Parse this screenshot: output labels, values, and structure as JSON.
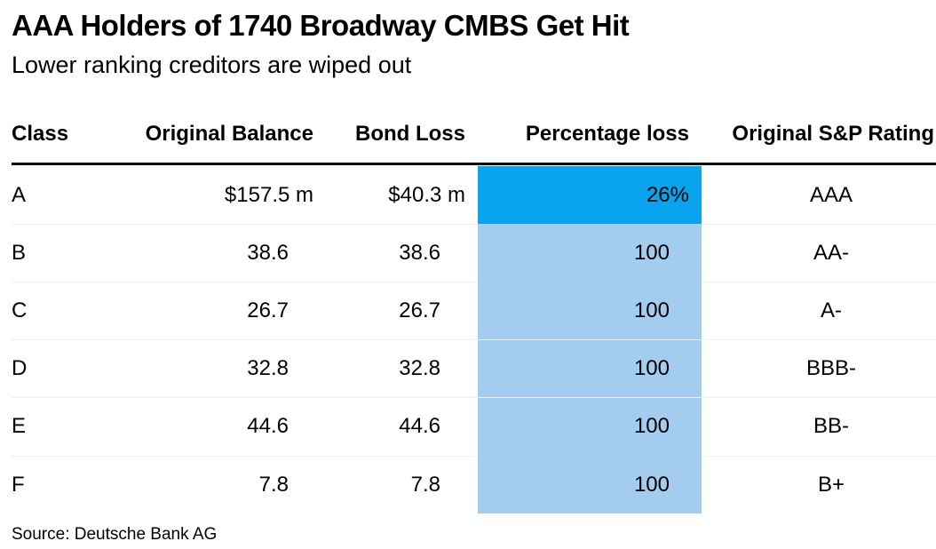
{
  "title": "AAA Holders of 1740 Broadway CMBS Get Hit",
  "subtitle": "Lower ranking creditors are wiped out",
  "source": "Source: Deutsche Bank AG",
  "colors": {
    "highlight": "#0aa4ee",
    "shade": "#a3ccef"
  },
  "chart_data": {
    "type": "table",
    "columns": [
      "Class",
      "Original Balance",
      "Bond Loss",
      "Percentage loss",
      "Original S&P Rating"
    ],
    "rows": [
      {
        "class": "A",
        "balance": "$157.5 m",
        "loss": "$40.3 m",
        "pct": "26%",
        "pct_value": 26,
        "rating": "AAA"
      },
      {
        "class": "B",
        "balance": "38.6",
        "loss": "38.6",
        "pct": "100",
        "pct_value": 100,
        "rating": "AA-"
      },
      {
        "class": "C",
        "balance": "26.7",
        "loss": "26.7",
        "pct": "100",
        "pct_value": 100,
        "rating": "A-"
      },
      {
        "class": "D",
        "balance": "32.8",
        "loss": "32.8",
        "pct": "100",
        "pct_value": 100,
        "rating": "BBB-"
      },
      {
        "class": "E",
        "balance": "44.6",
        "loss": "44.6",
        "pct": "100",
        "pct_value": 100,
        "rating": "BB-"
      },
      {
        "class": "F",
        "balance": "7.8",
        "loss": "7.8",
        "pct": "100",
        "pct_value": 100,
        "rating": "B+"
      }
    ]
  }
}
